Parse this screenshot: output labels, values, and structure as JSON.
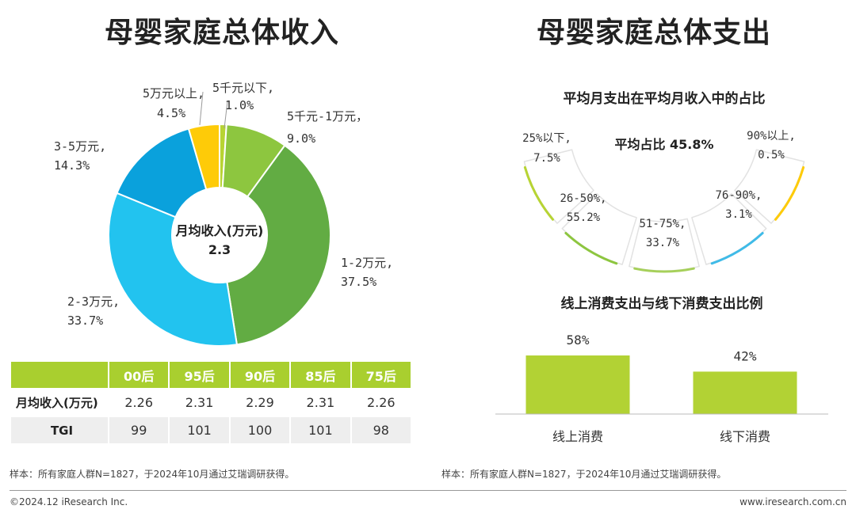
{
  "left_title": "母婴家庭总体收入",
  "right_title": "母婴家庭总体支出",
  "colors": {
    "green_light": "#8dc63f",
    "green_dark": "#62ac43",
    "cyan": "#22c3ef",
    "blue": "#0aa1dc",
    "yellow": "#fecb08",
    "lime": "#b7d433",
    "table_header": "#a9cf2f",
    "bar": "#b2d234"
  },
  "chart_data": [
    {
      "type": "pie",
      "variant": "donut",
      "title": "母婴家庭总体收入",
      "center_label": "月均收入(万元)",
      "center_value": "2.3",
      "slices": [
        {
          "label": "5千元以下,",
          "value": 1.0,
          "value_text": "1.0%",
          "color": "#b7d433"
        },
        {
          "label": "5千元-1万元，",
          "value": 9.0,
          "value_text": "9.0%",
          "color": "#8dc63f"
        },
        {
          "label": "1-2万元,",
          "value": 37.5,
          "value_text": "37.5%",
          "color": "#62ac43"
        },
        {
          "label": "2-3万元,",
          "value": 33.7,
          "value_text": "33.7%",
          "color": "#22c3ef"
        },
        {
          "label": "3-5万元,",
          "value": 14.3,
          "value_text": "14.3%",
          "color": "#0aa1dc"
        },
        {
          "label": "5万元以上,",
          "value": 4.5,
          "value_text": "4.5%",
          "color": "#fecb08"
        }
      ]
    },
    {
      "type": "table",
      "columns": [
        "00后",
        "95后",
        "90后",
        "85后",
        "75后"
      ],
      "rows": [
        {
          "label": "月均收入(万元)",
          "values": [
            "2.26",
            "2.31",
            "2.29",
            "2.31",
            "2.26"
          ]
        },
        {
          "label": "TGI",
          "values": [
            "99",
            "101",
            "100",
            "101",
            "98"
          ]
        }
      ]
    },
    {
      "type": "pie",
      "variant": "segmented-arc",
      "title": "平均月支出在平均月收入中的占比",
      "center_label": "平均占比 45.8%",
      "segments": [
        {
          "label": "25%以下,",
          "value": 7.5,
          "value_text": "7.5%",
          "color": "#b7d433"
        },
        {
          "label": "26-50%,",
          "value": 55.2,
          "value_text": "55.2%",
          "color": "#8dc63f"
        },
        {
          "label": "51-75%,",
          "value": 33.7,
          "value_text": "33.7%",
          "color": "#a6d05a"
        },
        {
          "label": "76-90%,",
          "value": 3.1,
          "value_text": "3.1%",
          "color": "#3fbbe8"
        },
        {
          "label": "90%以上,",
          "value": 0.5,
          "value_text": "0.5%",
          "color": "#fecb08"
        }
      ]
    },
    {
      "type": "bar",
      "title": "线上消费支出与线下消费支出比例",
      "categories": [
        "线上消费",
        "线下消费"
      ],
      "values": [
        58,
        42
      ],
      "value_texts": [
        "58%",
        "42%"
      ],
      "ylim": [
        0,
        100
      ],
      "color": "#b2d234"
    }
  ],
  "note_left": "样本：所有家庭人群N=1827，于2024年10月通过艾瑞调研获得。",
  "note_right": "样本：所有家庭人群N=1827，于2024年10月通过艾瑞调研获得。",
  "footer_left": "©2024.12 iResearch Inc.",
  "footer_right": "www.iresearch.com.cn"
}
